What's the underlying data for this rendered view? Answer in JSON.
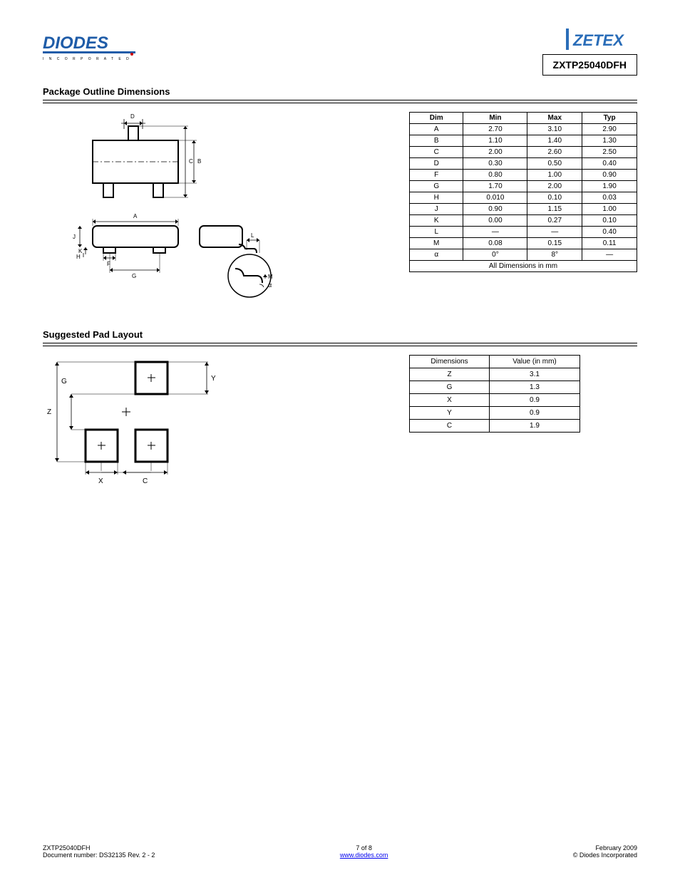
{
  "header": {
    "product": "ZXTP25040DFH"
  },
  "sections": {
    "pkg_title": "Package Outline Dimensions",
    "pad_title": "Suggested Pad Layout"
  },
  "dim_table": {
    "headers": [
      "Dim",
      "Min",
      "Max",
      "Typ"
    ],
    "rows": [
      [
        "A",
        "2.70",
        "3.10",
        "2.90"
      ],
      [
        "B",
        "1.10",
        "1.40",
        "1.30"
      ],
      [
        "C",
        "2.00",
        "2.60",
        "2.50"
      ],
      [
        "D",
        "0.30",
        "0.50",
        "0.40"
      ],
      [
        "F",
        "0.80",
        "1.00",
        "0.90"
      ],
      [
        "G",
        "1.70",
        "2.00",
        "1.90"
      ],
      [
        "H",
        "0.010",
        "0.10",
        "0.03"
      ],
      [
        "J",
        "0.90",
        "1.15",
        "1.00"
      ],
      [
        "K",
        "0.00",
        "0.27",
        "0.10"
      ],
      [
        "L",
        "—",
        "—",
        "0.40"
      ],
      [
        "M",
        "0.08",
        "0.15",
        "0.11"
      ],
      [
        "α",
        "0°",
        "8°",
        "—"
      ]
    ],
    "footer": "All Dimensions in mm"
  },
  "pad_table": {
    "headers": [
      "Dimensions",
      "Value (in mm)"
    ],
    "rows": [
      [
        "Z",
        "3.1"
      ],
      [
        "G",
        "1.3"
      ],
      [
        "X",
        "0.9"
      ],
      [
        "Y",
        "0.9"
      ],
      [
        "C",
        "1.9"
      ]
    ]
  },
  "pad_labels": {
    "z": "Z",
    "g": "G",
    "x": "X",
    "y": "Y",
    "c": "C"
  },
  "pkg_labels": {
    "a": "A",
    "b": "B",
    "c": "C",
    "d": "D",
    "f": "F",
    "g": "G",
    "h": "H",
    "j": "J",
    "k": "K",
    "l": "L",
    "m": "M",
    "alpha": "α"
  },
  "footer": {
    "left1": "ZXTP25040DFH",
    "left2": "Document number: DS32135 Rev. 2 - 2",
    "center1": "7 of 8",
    "center2_prefix": "",
    "center2_link": "www.diodes.com",
    "right1": "February 2009",
    "right2": "© Diodes Incorporated"
  },
  "colors": {
    "diodes_blue": "#1f5ca8",
    "diodes_dark": "#0a2f5c",
    "zetex_blue": "#2a6db8",
    "link": "#0000ee"
  }
}
